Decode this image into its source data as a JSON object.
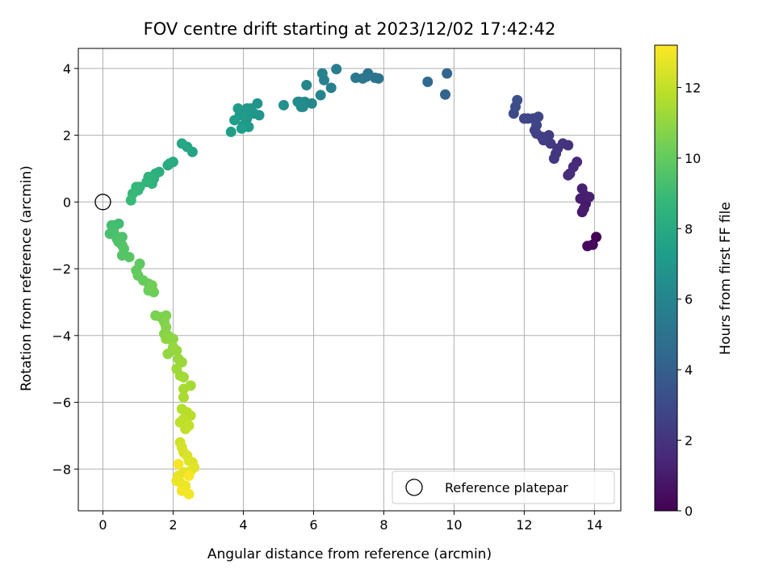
{
  "chart_data": {
    "type": "scatter",
    "title": "FOV centre drift starting at 2023/12/02 17:42:42",
    "xlabel": "Angular distance from reference (arcmin)",
    "ylabel": "Rotation from reference (arcmin)",
    "xlim": [
      -0.7,
      14.75
    ],
    "ylim": [
      -9.25,
      4.6
    ],
    "x_ticks": [
      0,
      2,
      4,
      6,
      8,
      10,
      12,
      14
    ],
    "y_ticks": [
      -8,
      -6,
      -4,
      -2,
      0,
      2,
      4
    ],
    "grid": true,
    "colormap": "viridis",
    "colorbar": {
      "label": "Hours from first FF file",
      "range": [
        0,
        13.2
      ],
      "ticks": [
        0,
        2,
        4,
        6,
        8,
        10,
        12
      ]
    },
    "legend": {
      "position": "lower-right",
      "entries": [
        {
          "label": "Reference platepar",
          "marker": "open-circle"
        }
      ]
    },
    "reference_point": {
      "x": 0,
      "y": 0
    },
    "series": [
      {
        "fields": [
          "x",
          "y",
          "hours"
        ],
        "points": [
          [
            14.05,
            -1.05,
            0.1
          ],
          [
            13.95,
            -1.28,
            0.25
          ],
          [
            13.8,
            -1.32,
            0.35
          ],
          [
            13.75,
            -0.05,
            0.8
          ],
          [
            13.65,
            -0.3,
            0.9
          ],
          [
            13.7,
            -0.2,
            1.0
          ],
          [
            13.6,
            0.1,
            1.05
          ],
          [
            13.72,
            0.2,
            1.1
          ],
          [
            13.85,
            0.15,
            1.15
          ],
          [
            13.65,
            0.4,
            1.2
          ],
          [
            13.5,
            1.2,
            1.5
          ],
          [
            13.4,
            1.05,
            1.6
          ],
          [
            13.3,
            0.85,
            1.7
          ],
          [
            13.25,
            0.8,
            1.75
          ],
          [
            13.25,
            1.7,
            1.9
          ],
          [
            13.1,
            1.75,
            2.0
          ],
          [
            12.95,
            1.6,
            2.05
          ],
          [
            12.9,
            1.45,
            2.1
          ],
          [
            12.85,
            1.3,
            2.15
          ],
          [
            12.75,
            1.75,
            2.25
          ],
          [
            12.65,
            1.9,
            2.3
          ],
          [
            12.7,
            2.0,
            2.35
          ],
          [
            12.55,
            1.85,
            2.4
          ],
          [
            12.5,
            1.95,
            2.45
          ],
          [
            12.35,
            2.05,
            2.55
          ],
          [
            12.3,
            2.15,
            2.6
          ],
          [
            12.35,
            2.3,
            2.65
          ],
          [
            12.25,
            2.5,
            2.7
          ],
          [
            12.4,
            2.55,
            2.75
          ],
          [
            12.1,
            2.5,
            2.8
          ],
          [
            12.0,
            2.5,
            2.85
          ],
          [
            11.7,
            2.65,
            3.0
          ],
          [
            11.75,
            2.85,
            3.1
          ],
          [
            11.8,
            3.05,
            3.2
          ],
          [
            9.75,
            3.22,
            4.2
          ],
          [
            9.8,
            3.85,
            4.3
          ],
          [
            9.25,
            3.6,
            4.5
          ],
          [
            7.85,
            3.7,
            5.0
          ],
          [
            7.75,
            3.72,
            5.05
          ],
          [
            7.55,
            3.85,
            5.1
          ],
          [
            7.5,
            3.75,
            5.15
          ],
          [
            7.4,
            3.7,
            5.2
          ],
          [
            7.2,
            3.72,
            5.25
          ],
          [
            6.65,
            3.98,
            5.6
          ],
          [
            6.5,
            3.42,
            5.7
          ],
          [
            6.3,
            3.65,
            5.75
          ],
          [
            6.25,
            3.85,
            5.8
          ],
          [
            6.2,
            3.2,
            6.0
          ],
          [
            5.8,
            3.5,
            6.1
          ],
          [
            5.95,
            2.95,
            6.15
          ],
          [
            5.75,
            3.0,
            6.2
          ],
          [
            5.7,
            2.85,
            6.25
          ],
          [
            5.6,
            3.0,
            6.3
          ],
          [
            5.65,
            2.85,
            6.35
          ],
          [
            5.55,
            3.0,
            6.4
          ],
          [
            5.15,
            2.9,
            6.6
          ],
          [
            4.4,
            2.95,
            6.8
          ],
          [
            4.45,
            2.6,
            6.85
          ],
          [
            4.2,
            2.8,
            6.9
          ],
          [
            4.3,
            2.65,
            6.95
          ],
          [
            4.1,
            2.8,
            7.0
          ],
          [
            4.1,
            2.5,
            7.05
          ],
          [
            4.0,
            2.3,
            7.1
          ],
          [
            4.15,
            2.25,
            7.15
          ],
          [
            3.9,
            2.6,
            7.2
          ],
          [
            3.85,
            2.8,
            7.25
          ],
          [
            3.75,
            2.45,
            7.3
          ],
          [
            3.95,
            2.2,
            7.35
          ],
          [
            3.65,
            2.1,
            7.4
          ],
          [
            2.55,
            1.5,
            7.7
          ],
          [
            2.4,
            1.65,
            7.8
          ],
          [
            2.25,
            1.75,
            7.85
          ],
          [
            2.0,
            1.2,
            8.0
          ],
          [
            1.9,
            1.15,
            8.05
          ],
          [
            1.85,
            1.1,
            8.1
          ],
          [
            1.6,
            0.9,
            8.3
          ],
          [
            1.5,
            0.85,
            8.35
          ],
          [
            1.45,
            0.7,
            8.4
          ],
          [
            1.4,
            0.55,
            8.45
          ],
          [
            1.3,
            0.75,
            8.5
          ],
          [
            1.25,
            0.6,
            8.55
          ],
          [
            1.05,
            0.45,
            8.7
          ],
          [
            1.0,
            0.35,
            8.75
          ],
          [
            0.95,
            0.45,
            8.8
          ],
          [
            0.85,
            0.25,
            8.85
          ],
          [
            0.8,
            0.05,
            8.9
          ],
          [
            0.45,
            -0.65,
            9.1
          ],
          [
            0.35,
            -0.7,
            9.15
          ],
          [
            0.25,
            -0.7,
            9.2
          ],
          [
            0.3,
            -0.85,
            9.25
          ],
          [
            0.2,
            -0.95,
            9.3
          ],
          [
            0.35,
            -1.0,
            9.35
          ],
          [
            0.4,
            -1.1,
            9.4
          ],
          [
            0.55,
            -1.05,
            9.45
          ],
          [
            0.45,
            -1.2,
            9.5
          ],
          [
            0.55,
            -1.3,
            9.55
          ],
          [
            0.6,
            -1.4,
            9.6
          ],
          [
            0.55,
            -1.6,
            9.65
          ],
          [
            0.75,
            -1.65,
            9.7
          ],
          [
            1.05,
            -1.85,
            9.9
          ],
          [
            0.95,
            -2.05,
            9.95
          ],
          [
            1.0,
            -2.2,
            10.0
          ],
          [
            1.15,
            -2.35,
            10.05
          ],
          [
            1.3,
            -2.45,
            10.1
          ],
          [
            1.3,
            -2.65,
            10.15
          ],
          [
            1.35,
            -2.6,
            10.2
          ],
          [
            1.45,
            -2.7,
            10.25
          ],
          [
            1.4,
            -2.5,
            10.3
          ],
          [
            1.5,
            -3.4,
            10.5
          ],
          [
            1.65,
            -3.45,
            10.55
          ],
          [
            1.8,
            -3.4,
            10.6
          ],
          [
            1.75,
            -3.6,
            10.65
          ],
          [
            1.8,
            -3.75,
            10.7
          ],
          [
            1.75,
            -3.95,
            10.75
          ],
          [
            1.85,
            -4.0,
            10.8
          ],
          [
            1.9,
            -4.1,
            10.85
          ],
          [
            2.0,
            -4.1,
            10.9
          ],
          [
            1.8,
            -4.1,
            10.95
          ],
          [
            1.85,
            -4.55,
            11.0
          ],
          [
            2.0,
            -4.35,
            11.05
          ],
          [
            2.1,
            -4.45,
            11.1
          ],
          [
            2.15,
            -4.7,
            11.15
          ],
          [
            2.25,
            -4.8,
            11.2
          ],
          [
            2.1,
            -5.0,
            11.25
          ],
          [
            2.2,
            -5.2,
            11.3
          ],
          [
            2.3,
            -5.25,
            11.35
          ],
          [
            2.5,
            -5.5,
            11.4
          ],
          [
            2.3,
            -5.6,
            11.45
          ],
          [
            2.3,
            -5.85,
            11.5
          ],
          [
            2.25,
            -6.2,
            11.7
          ],
          [
            2.4,
            -6.3,
            11.75
          ],
          [
            2.5,
            -6.4,
            11.8
          ],
          [
            2.3,
            -6.5,
            11.85
          ],
          [
            2.2,
            -6.6,
            11.9
          ],
          [
            2.35,
            -6.8,
            11.95
          ],
          [
            2.45,
            -6.7,
            12.0
          ],
          [
            2.2,
            -7.2,
            12.3
          ],
          [
            2.25,
            -7.35,
            12.35
          ],
          [
            2.3,
            -7.5,
            12.4
          ],
          [
            2.4,
            -7.6,
            12.45
          ],
          [
            2.45,
            -7.75,
            12.5
          ],
          [
            2.55,
            -7.8,
            12.55
          ],
          [
            2.6,
            -7.95,
            12.6
          ],
          [
            2.5,
            -8.05,
            12.65
          ],
          [
            2.3,
            -8.1,
            12.7
          ],
          [
            2.15,
            -8.2,
            12.75
          ],
          [
            2.1,
            -8.35,
            12.8
          ],
          [
            2.2,
            -8.4,
            12.85
          ],
          [
            2.35,
            -8.5,
            12.9
          ],
          [
            2.25,
            -8.65,
            12.95
          ],
          [
            2.45,
            -8.75,
            13.0
          ],
          [
            2.15,
            -7.85,
            13.05
          ],
          [
            2.45,
            -8.2,
            13.1
          ]
        ]
      }
    ]
  }
}
